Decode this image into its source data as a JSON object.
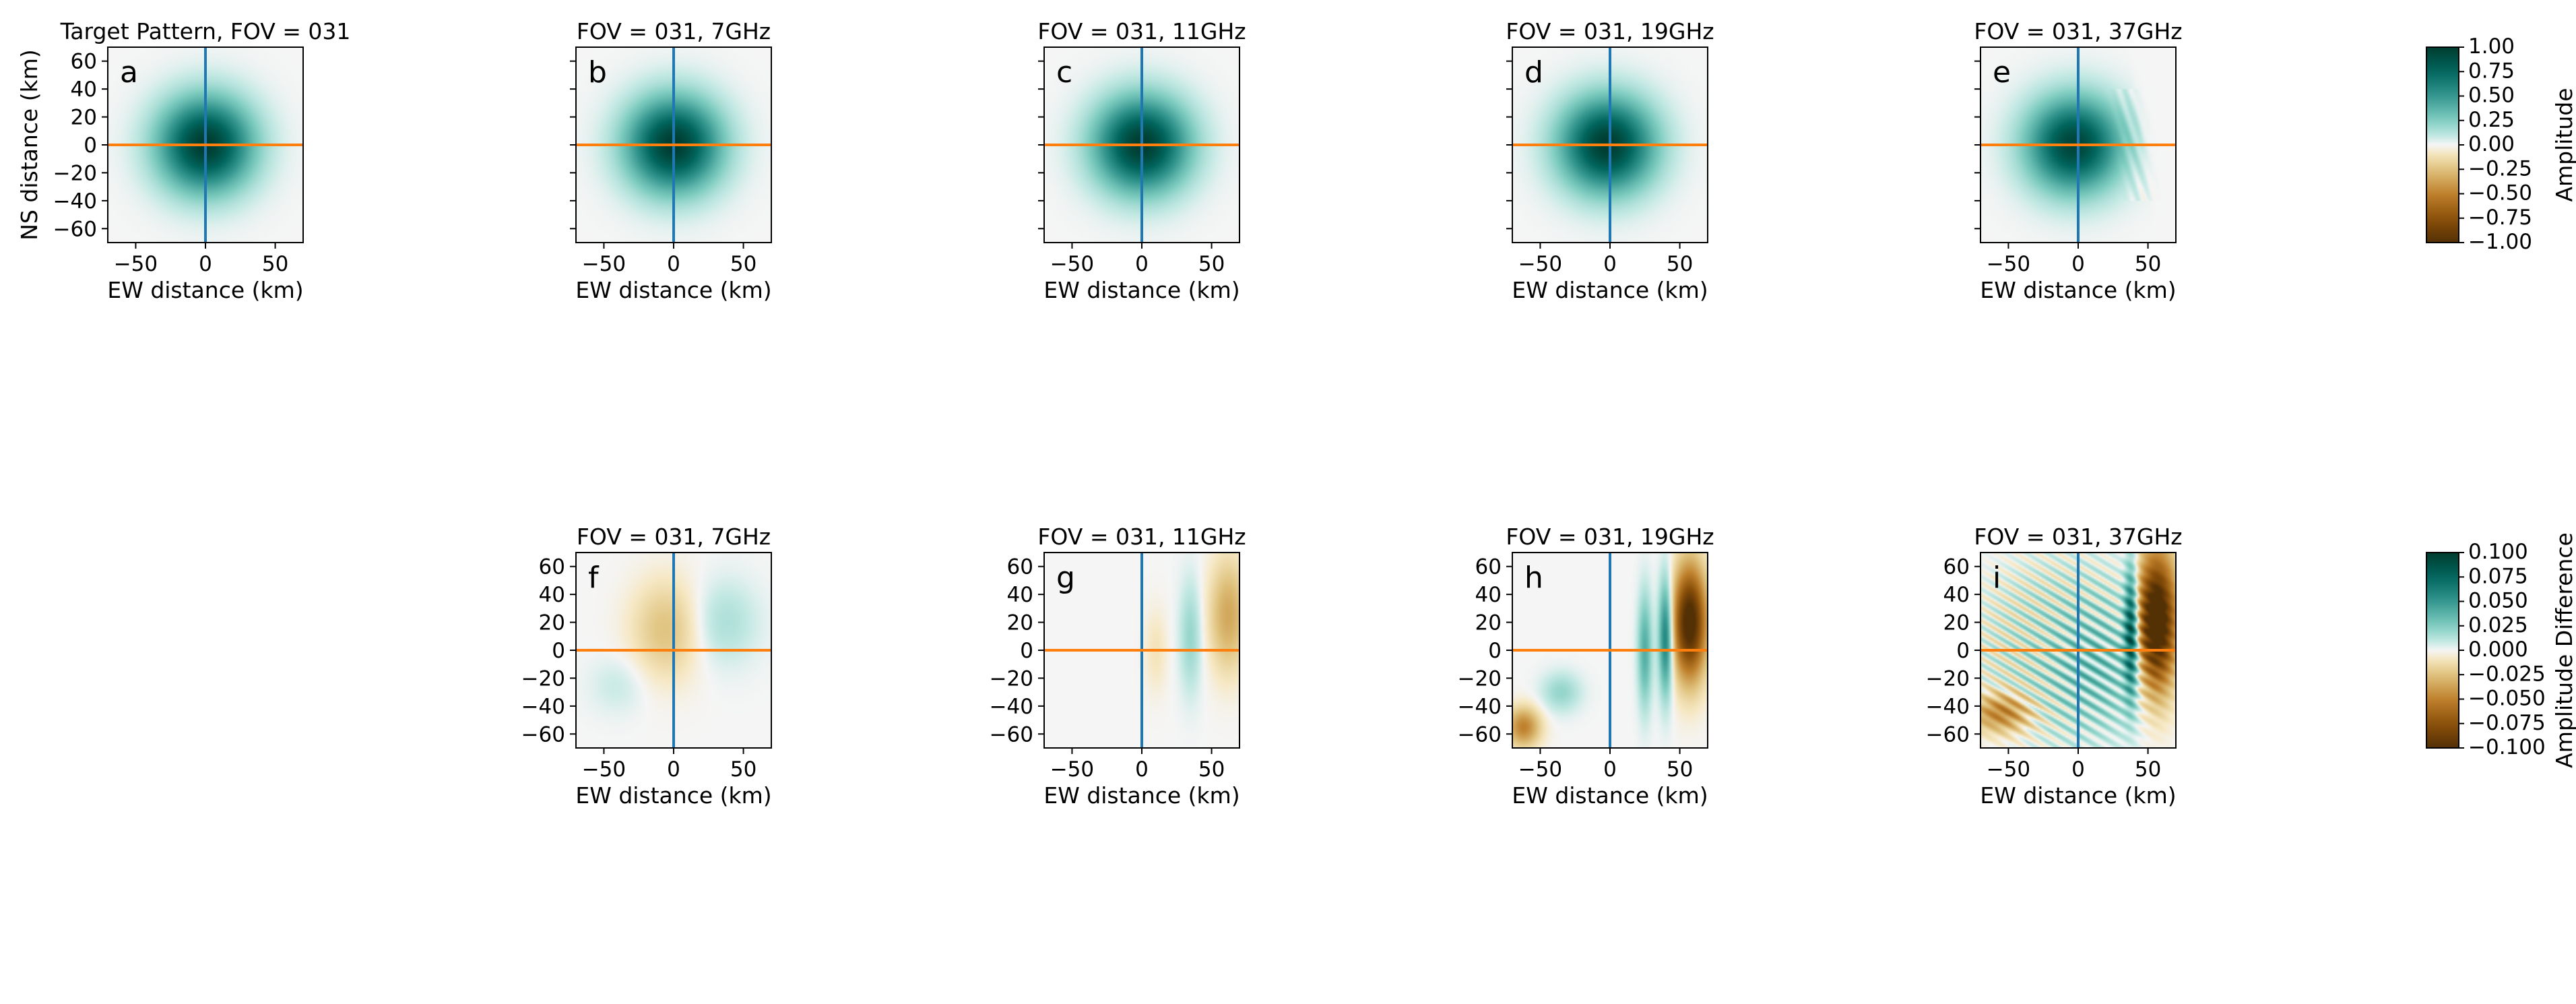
{
  "figure": {
    "xlabel": "EW distance (km)",
    "ylabel": "NS distance (km)"
  },
  "colors": {
    "vline": "#1f77b4",
    "hline": "#ff7f0e",
    "cmap_pos": "#01665e",
    "cmap_mid": "#f5f5f5",
    "cmap_neg": "#8c510a"
  },
  "chart_data": [
    {
      "type": "heatmap",
      "panel": "a",
      "title": "Target Pattern, FOV = 031",
      "row": "top",
      "xlim": [
        -70,
        70
      ],
      "ylim": [
        -70,
        70
      ],
      "xticks": [
        "−50",
        "0",
        "50"
      ],
      "xtick_values": [
        -50,
        0,
        50
      ],
      "yticks": [
        "60",
        "40",
        "20",
        "0",
        "−20",
        "−40",
        "−60"
      ],
      "ytick_values": [
        60,
        40,
        20,
        0,
        -20,
        -40,
        -60
      ],
      "show_ylabels": true,
      "show_xlabel": true,
      "show_ylabel": true,
      "field": {
        "kind": "gaussian",
        "cx": 0,
        "cy": 0,
        "sigma_km": 23,
        "peak": 1.0
      },
      "guide_lines": {
        "vertical_x": 0,
        "horizontal_y": 0
      }
    },
    {
      "type": "heatmap",
      "panel": "b",
      "title": "FOV = 031, 7GHz",
      "row": "top",
      "xlim": [
        -70,
        70
      ],
      "ylim": [
        -70,
        70
      ],
      "xticks": [
        "−50",
        "0",
        "50"
      ],
      "xtick_values": [
        -50,
        0,
        50
      ],
      "show_ylabels": false,
      "show_xlabel": true,
      "field": {
        "kind": "gaussian",
        "cx": 0,
        "cy": 0,
        "sigma_km": 23,
        "peak": 1.0
      },
      "guide_lines": {
        "vertical_x": 0,
        "horizontal_y": 0
      }
    },
    {
      "type": "heatmap",
      "panel": "c",
      "title": "FOV = 031, 11GHz",
      "row": "top",
      "xlim": [
        -70,
        70
      ],
      "ylim": [
        -70,
        70
      ],
      "xticks": [
        "−50",
        "0",
        "50"
      ],
      "xtick_values": [
        -50,
        0,
        50
      ],
      "show_ylabels": false,
      "show_xlabel": true,
      "field": {
        "kind": "gaussian",
        "cx": 0,
        "cy": 0,
        "sigma_km": 23,
        "peak": 1.0
      },
      "guide_lines": {
        "vertical_x": 0,
        "horizontal_y": 0
      }
    },
    {
      "type": "heatmap",
      "panel": "d",
      "title": "FOV = 031, 19GHz",
      "row": "top",
      "xlim": [
        -70,
        70
      ],
      "ylim": [
        -70,
        70
      ],
      "xticks": [
        "−50",
        "0",
        "50"
      ],
      "xtick_values": [
        -50,
        0,
        50
      ],
      "show_ylabels": false,
      "show_xlabel": true,
      "field": {
        "kind": "gaussian",
        "cx": -2,
        "cy": 0,
        "sigma_km": 23,
        "peak": 1.0
      },
      "guide_lines": {
        "vertical_x": 0,
        "horizontal_y": 0
      }
    },
    {
      "type": "heatmap",
      "panel": "e",
      "title": "FOV = 031, 37GHz",
      "row": "top",
      "xlim": [
        -70,
        70
      ],
      "ylim": [
        -70,
        70
      ],
      "xticks": [
        "−50",
        "0",
        "50"
      ],
      "xtick_values": [
        -50,
        0,
        50
      ],
      "show_ylabels": false,
      "show_xlabel": true,
      "field": {
        "kind": "gaussian",
        "cx": -3,
        "cy": 0,
        "sigma_km": 23,
        "peak": 0.95,
        "truncate_edge_km": 45
      },
      "guide_lines": {
        "vertical_x": 0,
        "horizontal_y": 0
      }
    },
    {
      "type": "heatmap",
      "panel": "f",
      "title": "FOV = 031, 7GHz",
      "row": "bottom",
      "xlim": [
        -70,
        70
      ],
      "ylim": [
        -70,
        70
      ],
      "xticks": [
        "−50",
        "0",
        "50"
      ],
      "xtick_values": [
        -50,
        0,
        50
      ],
      "yticks": [
        "60",
        "40",
        "20",
        "0",
        "−20",
        "−40",
        "−60"
      ],
      "ytick_values": [
        60,
        40,
        20,
        0,
        -20,
        -40,
        -60
      ],
      "show_ylabels": true,
      "show_xlabel": true,
      "field": {
        "kind": "blobs",
        "blobs": [
          {
            "cx": -5,
            "cy": 15,
            "rx": 25,
            "ry": 35,
            "amp": -0.025
          },
          {
            "cx": 35,
            "cy": 20,
            "rx": 25,
            "ry": 30,
            "amp": 0.015
          },
          {
            "cx": -40,
            "cy": -25,
            "rx": 20,
            "ry": 20,
            "amp": 0.008
          }
        ]
      },
      "guide_lines": {
        "vertical_x": 0,
        "horizontal_y": 0
      }
    },
    {
      "type": "heatmap",
      "panel": "g",
      "title": "FOV = 031, 11GHz",
      "row": "bottom",
      "xlim": [
        -70,
        70
      ],
      "ylim": [
        -70,
        70
      ],
      "xticks": [
        "−50",
        "0",
        "50"
      ],
      "xtick_values": [
        -50,
        0,
        50
      ],
      "yticks": [
        "60",
        "40",
        "20",
        "0",
        "−20",
        "−40",
        "−60"
      ],
      "ytick_values": [
        60,
        40,
        20,
        0,
        -20,
        -40,
        -60
      ],
      "show_ylabels": true,
      "show_xlabel": true,
      "field": {
        "kind": "blobs",
        "blobs": [
          {
            "cx": 62,
            "cy": 25,
            "rx": 14,
            "ry": 40,
            "amp": -0.035
          },
          {
            "cx": 35,
            "cy": 10,
            "rx": 8,
            "ry": 40,
            "amp": 0.02
          },
          {
            "cx": 10,
            "cy": 0,
            "rx": 8,
            "ry": 30,
            "amp": -0.01
          }
        ]
      },
      "guide_lines": {
        "vertical_x": 0,
        "horizontal_y": 0
      }
    },
    {
      "type": "heatmap",
      "panel": "h",
      "title": "FOV = 031, 19GHz",
      "row": "bottom",
      "xlim": [
        -70,
        70
      ],
      "ylim": [
        -70,
        70
      ],
      "xticks": [
        "−50",
        "0",
        "50"
      ],
      "xtick_values": [
        -50,
        0,
        50
      ],
      "yticks": [
        "60",
        "40",
        "20",
        "0",
        "−20",
        "−40",
        "−60"
      ],
      "ytick_values": [
        60,
        40,
        20,
        0,
        -20,
        -40,
        -60
      ],
      "show_ylabels": true,
      "show_xlabel": true,
      "field": {
        "kind": "blobs",
        "blobs": [
          {
            "cx": 57,
            "cy": 20,
            "rx": 12,
            "ry": 40,
            "amp": -0.11
          },
          {
            "cx": 40,
            "cy": 10,
            "rx": 5,
            "ry": 40,
            "amp": 0.07
          },
          {
            "cx": 25,
            "cy": 0,
            "rx": 5,
            "ry": 40,
            "amp": 0.04
          },
          {
            "cx": -62,
            "cy": -55,
            "rx": 12,
            "ry": 14,
            "amp": -0.05
          },
          {
            "cx": -35,
            "cy": -30,
            "rx": 14,
            "ry": 14,
            "amp": 0.02
          }
        ]
      },
      "guide_lines": {
        "vertical_x": 0,
        "horizontal_y": 0
      }
    },
    {
      "type": "heatmap",
      "panel": "i",
      "title": "FOV = 031, 37GHz",
      "row": "bottom",
      "xlim": [
        -70,
        70
      ],
      "ylim": [
        -70,
        70
      ],
      "xticks": [
        "−50",
        "0",
        "50"
      ],
      "xtick_values": [
        -50,
        0,
        50
      ],
      "yticks": [
        "60",
        "40",
        "20",
        "0",
        "−20",
        "−40",
        "−60"
      ],
      "ytick_values": [
        60,
        40,
        20,
        0,
        -20,
        -40,
        -60
      ],
      "show_ylabels": true,
      "show_xlabel": true,
      "field": {
        "kind": "blobs",
        "blobs": [
          {
            "cx": 56,
            "cy": 20,
            "rx": 14,
            "ry": 48,
            "amp": -0.13
          },
          {
            "cx": 38,
            "cy": 15,
            "rx": 5,
            "ry": 45,
            "amp": 0.09
          },
          {
            "cx": -55,
            "cy": -45,
            "rx": 22,
            "ry": 14,
            "amp": -0.05
          },
          {
            "cx": 10,
            "cy": -10,
            "rx": 40,
            "ry": 50,
            "amp": 0.025
          }
        ],
        "stripes": {
          "amp": 0.025,
          "period_km": 9
        }
      },
      "guide_lines": {
        "vertical_x": 0,
        "horizontal_y": 0
      }
    }
  ],
  "colorbars": [
    {
      "name": "amplitude",
      "label": "Amplitude",
      "vmin": -1.0,
      "vmax": 1.0,
      "ticks": [
        "1.00",
        "0.75",
        "0.50",
        "0.25",
        "0.00",
        "−0.25",
        "−0.50",
        "−0.75",
        "−1.00"
      ],
      "tick_values": [
        1.0,
        0.75,
        0.5,
        0.25,
        0.0,
        -0.25,
        -0.5,
        -0.75,
        -1.0
      ]
    },
    {
      "name": "amplitude-difference",
      "label": "Amplitude Difference",
      "vmin": -0.1,
      "vmax": 0.1,
      "ticks": [
        "0.100",
        "0.075",
        "0.050",
        "0.025",
        "0.000",
        "−0.025",
        "−0.050",
        "−0.075",
        "−0.100"
      ],
      "tick_values": [
        0.1,
        0.075,
        0.05,
        0.025,
        0.0,
        -0.025,
        -0.05,
        -0.075,
        -0.1
      ]
    }
  ]
}
